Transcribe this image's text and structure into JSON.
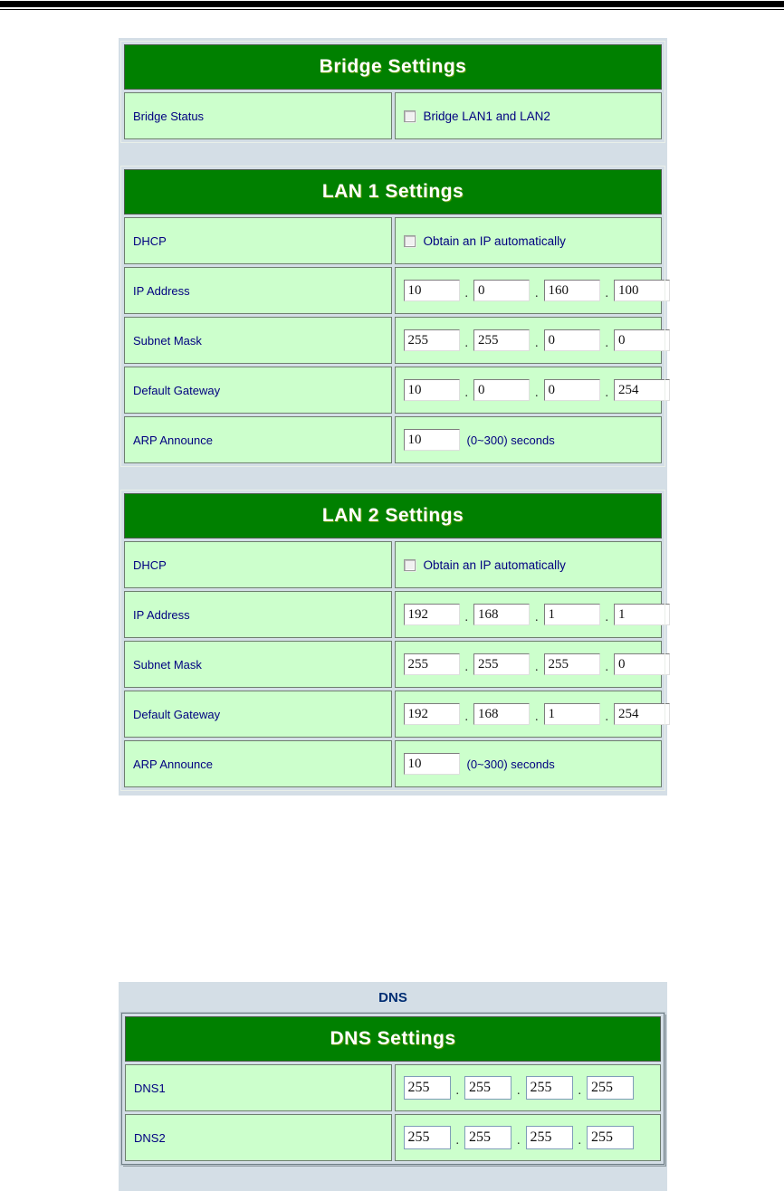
{
  "ui": {
    "octet_separator": ".",
    "colors": {
      "header_bg": "#008000",
      "cell_bg": "#ccffcc",
      "screenshot_bg": "#d4dee6",
      "label_text": "#000080"
    }
  },
  "bridge": {
    "title": "Bridge Settings",
    "status_label": "Bridge Status",
    "checkbox_label": "Bridge LAN1 and LAN2",
    "checkbox_checked": false
  },
  "lan1": {
    "title": "LAN 1 Settings",
    "dhcp_label": "DHCP",
    "dhcp_option": "Obtain an IP automatically",
    "dhcp_checked": false,
    "ip_label": "IP Address",
    "ip": [
      "10",
      "0",
      "160",
      "100"
    ],
    "mask_label": "Subnet Mask",
    "mask": [
      "255",
      "255",
      "0",
      "0"
    ],
    "gateway_label": "Default Gateway",
    "gateway": [
      "10",
      "0",
      "0",
      "254"
    ],
    "arp_label": "ARP Announce",
    "arp_value": "10",
    "arp_hint": "(0~300) seconds"
  },
  "lan2": {
    "title": "LAN 2 Settings",
    "dhcp_label": "DHCP",
    "dhcp_option": "Obtain an IP automatically",
    "dhcp_checked": false,
    "ip_label": "IP Address",
    "ip": [
      "192",
      "168",
      "1",
      "1"
    ],
    "mask_label": "Subnet Mask",
    "mask": [
      "255",
      "255",
      "255",
      "0"
    ],
    "gateway_label": "Default Gateway",
    "gateway": [
      "192",
      "168",
      "1",
      "254"
    ],
    "arp_label": "ARP Announce",
    "arp_value": "10",
    "arp_hint": "(0~300) seconds"
  },
  "dns": {
    "caption": "DNS",
    "title": "DNS Settings",
    "dns1_label": "DNS1",
    "dns1": [
      "255",
      "255",
      "255",
      "255"
    ],
    "dns2_label": "DNS2",
    "dns2": [
      "255",
      "255",
      "255",
      "255"
    ]
  }
}
